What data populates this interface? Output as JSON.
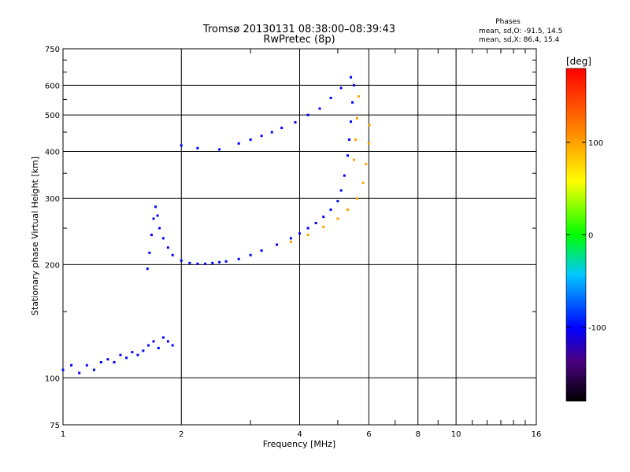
{
  "chart_data": {
    "type": "scatter",
    "title": "Tromsø 20130131 08:38:00–08:39:43",
    "subtitle": "RwPretec (8p)",
    "xlabel": "Frequency [MHz]",
    "ylabel": "Stationary phase Virtual Height [km]",
    "x_scale": "log",
    "y_scale": "log",
    "xlim": [
      1,
      16
    ],
    "ylim": [
      75,
      750
    ],
    "x_ticks": [
      1,
      2,
      4,
      6,
      8,
      10,
      16
    ],
    "x_tick_labels": [
      "1",
      "2",
      "4",
      "6",
      "8",
      "10",
      "16"
    ],
    "x_minor_ticks": [
      3,
      5,
      7,
      9,
      11,
      12,
      13,
      14,
      15
    ],
    "y_ticks": [
      75,
      100,
      200,
      300,
      400,
      500,
      600,
      750
    ],
    "y_tick_labels": [
      "75",
      "100",
      "200",
      "300",
      "400",
      "500",
      "600",
      "750"
    ],
    "grid": true,
    "stats": {
      "heading": "Phases",
      "line_o": "mean, sd,O: -91.5, 14.5",
      "line_x": "mean, sd,X:  86.4, 15.4"
    },
    "colorbar": {
      "label": "[deg]",
      "range": [
        -180,
        180
      ],
      "ticks": [
        100,
        0,
        -100
      ],
      "tick_labels": [
        "100",
        "0",
        "-100"
      ]
    },
    "traces": [
      {
        "name": "",
        "phase_deg": -100,
        "points": [
          [
            1.0,
            105
          ],
          [
            1.05,
            108
          ],
          [
            1.1,
            103
          ],
          [
            1.15,
            108
          ],
          [
            1.2,
            105
          ],
          [
            1.25,
            110
          ],
          [
            1.3,
            112
          ],
          [
            1.35,
            110
          ],
          [
            1.4,
            115
          ],
          [
            1.45,
            113
          ],
          [
            1.5,
            117
          ],
          [
            1.55,
            115
          ],
          [
            1.6,
            118
          ],
          [
            1.65,
            122
          ],
          [
            1.7,
            125
          ],
          [
            1.75,
            120
          ],
          [
            1.8,
            128
          ],
          [
            1.85,
            125
          ],
          [
            1.9,
            122
          ]
        ]
      },
      {
        "name": "",
        "phase_deg": -100,
        "points": [
          [
            1.64,
            195
          ],
          [
            1.66,
            215
          ],
          [
            1.68,
            240
          ],
          [
            1.7,
            265
          ],
          [
            1.72,
            285
          ],
          [
            1.74,
            270
          ],
          [
            1.76,
            250
          ],
          [
            1.8,
            235
          ],
          [
            1.85,
            222
          ],
          [
            1.9,
            212
          ],
          [
            2.0,
            205
          ],
          [
            2.1,
            202
          ],
          [
            2.2,
            201
          ],
          [
            2.3,
            201
          ],
          [
            2.4,
            202
          ],
          [
            2.5,
            203
          ],
          [
            2.6,
            204
          ],
          [
            2.8,
            207
          ],
          [
            3.0,
            212
          ],
          [
            3.2,
            218
          ],
          [
            3.5,
            226
          ],
          [
            3.8,
            235
          ],
          [
            4.0,
            242
          ],
          [
            4.2,
            250
          ],
          [
            4.4,
            258
          ],
          [
            4.6,
            268
          ],
          [
            4.8,
            280
          ],
          [
            5.0,
            295
          ],
          [
            5.1,
            315
          ],
          [
            5.2,
            345
          ],
          [
            5.3,
            390
          ],
          [
            5.35,
            430
          ],
          [
            5.4,
            480
          ],
          [
            5.45,
            540
          ],
          [
            5.5,
            600
          ]
        ]
      },
      {
        "name": "",
        "phase_deg": -100,
        "points": [
          [
            2.0,
            415
          ],
          [
            2.2,
            408
          ],
          [
            2.5,
            405
          ],
          [
            2.8,
            420
          ],
          [
            3.0,
            430
          ],
          [
            3.2,
            440
          ],
          [
            3.4,
            450
          ],
          [
            3.6,
            462
          ],
          [
            3.9,
            478
          ],
          [
            4.2,
            500
          ],
          [
            4.5,
            520
          ],
          [
            4.8,
            555
          ],
          [
            5.1,
            590
          ],
          [
            5.4,
            630
          ]
        ]
      },
      {
        "name": "",
        "phase_deg": 100,
        "points": [
          [
            3.8,
            230
          ],
          [
            4.2,
            240
          ],
          [
            4.6,
            252
          ],
          [
            5.0,
            265
          ],
          [
            5.3,
            280
          ],
          [
            5.6,
            300
          ],
          [
            5.8,
            330
          ],
          [
            5.9,
            370
          ],
          [
            6.0,
            420
          ],
          [
            6.02,
            470
          ]
        ]
      },
      {
        "name": "",
        "phase_deg": 100,
        "points": [
          [
            5.5,
            380
          ],
          [
            5.55,
            430
          ],
          [
            5.6,
            490
          ],
          [
            5.65,
            560
          ]
        ]
      }
    ]
  }
}
